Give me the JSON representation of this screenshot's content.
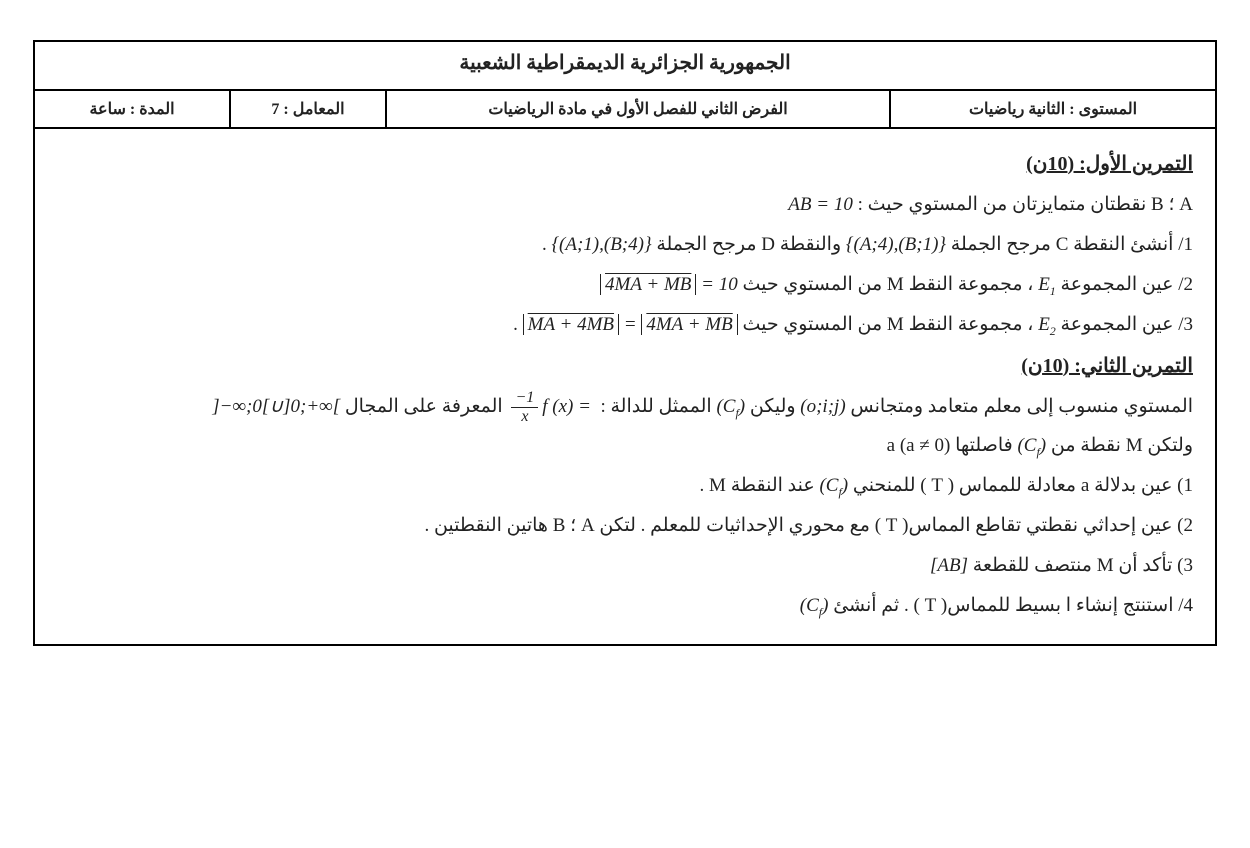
{
  "header": {
    "republic": "الجمهورية الجزائرية الديمقراطية الشعبية",
    "level": "المستوى : الثانية رياضيات",
    "title": "الفرض الثاني للفصل الأول في مادة الرياضيات",
    "coef": "المعامل : 7",
    "duration": "المدة : ساعة"
  },
  "ex1": {
    "title": "التمرين الأول: (10ن)",
    "l0_a": "A ؛ B  نقطتان متمايزتان من المستوي حيث : ",
    "l0_b": "AB = 10",
    "l1_a": "1/ أنشئ النقطة  C  مرجح الجملة ",
    "l1_b": "{(A;4),(B;1)}",
    "l1_c": " والنقطة  D  مرجح الجملة ",
    "l1_d": "{(A;1),(B;4)}",
    "l1_e": " .",
    "l2_a": "2/ عين المجموعة  ",
    "l2_e1": "E",
    "l2_s1": "1",
    "l2_b": " ، مجموعة النقط  M  من المستوي حيث ",
    "l2_c": "4MA + MB",
    "l2_d": " = 10",
    "l3_a": "3/ عين المجموعة  ",
    "l3_e2": "E",
    "l3_s2": "2",
    "l3_b": " ، مجموعة النقط  M  من المستوي حيث  ",
    "l3_c": "MA + 4MB",
    "l3_d": " = ",
    "l3_e": "4MA + MB",
    "l3_f": " ."
  },
  "ex2": {
    "title": "التمرين الثاني: (10ن)",
    "l1_a": "المستوي منسوب إلى معلم متعامد ومتجانس ",
    "l1_b": "(o;i;j)",
    "l1_c": " وليكن",
    "l1_cf": "(C",
    "l1_cf_f": "f",
    "l1_cf_end": ")",
    "l1_d": " الممثل للدالة :  ",
    "l1_e": "f (x) = ",
    "frac_num": "−1",
    "frac_den": "x",
    "l1_f": "  المعرفة على المجال ",
    "l1_g": "]−∞;0[∪]0;+∞[",
    "l2_a": "ولتكن  M  نقطة من  ",
    "l2_b": " فاصلتها  a  (a ≠ 0)",
    "q1": "1) عين بدلالة  a  معادلة للمماس ( T ) للمنحني ",
    "q1_b": " عند النقطة  M .",
    "q2": "2) عين إحداثي نقطتي تقاطع المماس( T ) مع محوري الإحداثيات للمعلم . لتكن  A ؛ B  هاتين النقطتين .",
    "q3_a": "3) تأكد أن  M  منتصف للقطعة ",
    "q3_b": "[AB]",
    "q4_a": "4/ استنتج إنشاء ا بسيط للمماس( T ) . ثم أنشئ ",
    "q4_cf": "(C",
    "q4_cf_f": "f",
    "q4_cf_end": ")"
  }
}
